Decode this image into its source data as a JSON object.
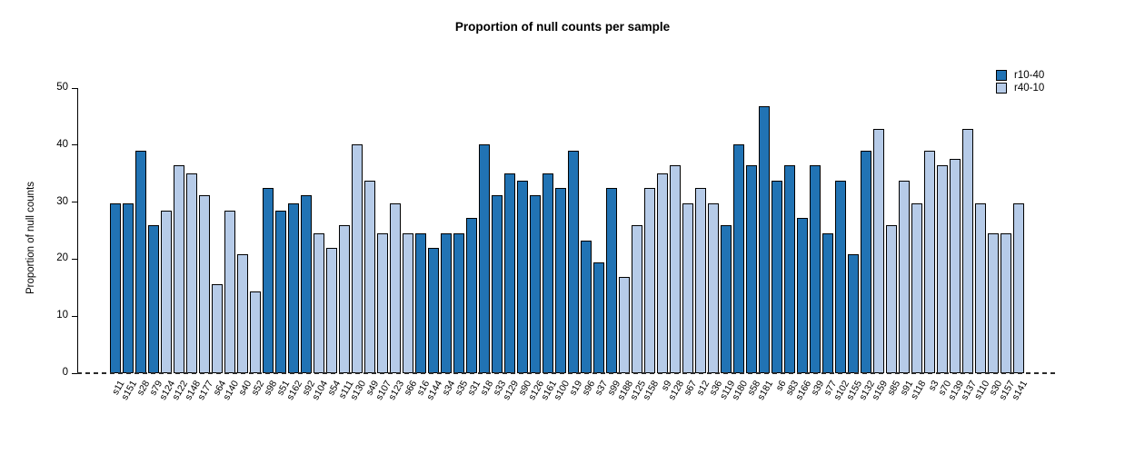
{
  "title": "Proportion of null counts per sample",
  "chart_data": {
    "type": "bar",
    "title": "Proportion of null counts per sample",
    "xlabel": "",
    "ylabel": "Proportion of null counts",
    "ylim": [
      0,
      50
    ],
    "yticks": [
      0,
      10,
      20,
      30,
      40,
      50
    ],
    "grid": false,
    "legend_position": "topright",
    "series": [
      {
        "name": "r10-40",
        "color": "#2173B4"
      },
      {
        "name": "r40-10",
        "color": "#B6CBE8"
      }
    ],
    "zero_line_style": "dashed",
    "samples": [
      {
        "label": "s11",
        "value": 29.8,
        "series": "r10-40"
      },
      {
        "label": "s151",
        "value": 29.8,
        "series": "r10-40"
      },
      {
        "label": "s28",
        "value": 39.0,
        "series": "r10-40"
      },
      {
        "label": "s79",
        "value": 26.0,
        "series": "r10-40"
      },
      {
        "label": "s124",
        "value": 28.5,
        "series": "r40-10"
      },
      {
        "label": "s122",
        "value": 36.4,
        "series": "r40-10"
      },
      {
        "label": "s148",
        "value": 35.0,
        "series": "r40-10"
      },
      {
        "label": "s177",
        "value": 31.2,
        "series": "r40-10"
      },
      {
        "label": "s64",
        "value": 15.6,
        "series": "r40-10"
      },
      {
        "label": "s140",
        "value": 28.5,
        "series": "r40-10"
      },
      {
        "label": "s40",
        "value": 20.8,
        "series": "r40-10"
      },
      {
        "label": "s52",
        "value": 14.3,
        "series": "r40-10"
      },
      {
        "label": "s98",
        "value": 32.5,
        "series": "r10-40"
      },
      {
        "label": "s51",
        "value": 28.5,
        "series": "r10-40"
      },
      {
        "label": "s162",
        "value": 29.8,
        "series": "r10-40"
      },
      {
        "label": "s92",
        "value": 31.2,
        "series": "r10-40"
      },
      {
        "label": "s104",
        "value": 24.5,
        "series": "r40-10"
      },
      {
        "label": "s54",
        "value": 22.0,
        "series": "r40-10"
      },
      {
        "label": "s111",
        "value": 26.0,
        "series": "r40-10"
      },
      {
        "label": "s130",
        "value": 40.2,
        "series": "r40-10"
      },
      {
        "label": "s49",
        "value": 33.8,
        "series": "r40-10"
      },
      {
        "label": "s107",
        "value": 24.5,
        "series": "r40-10"
      },
      {
        "label": "s123",
        "value": 29.8,
        "series": "r40-10"
      },
      {
        "label": "s66",
        "value": 24.5,
        "series": "r40-10"
      },
      {
        "label": "s16",
        "value": 24.5,
        "series": "r10-40"
      },
      {
        "label": "s144",
        "value": 22.0,
        "series": "r10-40"
      },
      {
        "label": "s34",
        "value": 24.5,
        "series": "r10-40"
      },
      {
        "label": "s35",
        "value": 24.5,
        "series": "r10-40"
      },
      {
        "label": "s31",
        "value": 27.3,
        "series": "r10-40"
      },
      {
        "label": "s18",
        "value": 40.2,
        "series": "r10-40"
      },
      {
        "label": "s33",
        "value": 31.2,
        "series": "r10-40"
      },
      {
        "label": "s129",
        "value": 35.0,
        "series": "r10-40"
      },
      {
        "label": "s90",
        "value": 33.8,
        "series": "r10-40"
      },
      {
        "label": "s126",
        "value": 31.2,
        "series": "r10-40"
      },
      {
        "label": "s161",
        "value": 35.0,
        "series": "r10-40"
      },
      {
        "label": "s100",
        "value": 32.5,
        "series": "r10-40"
      },
      {
        "label": "s19",
        "value": 39.0,
        "series": "r10-40"
      },
      {
        "label": "s96",
        "value": 23.3,
        "series": "r10-40"
      },
      {
        "label": "s37",
        "value": 19.5,
        "series": "r10-40"
      },
      {
        "label": "s99",
        "value": 32.5,
        "series": "r10-40"
      },
      {
        "label": "s188",
        "value": 16.8,
        "series": "r40-10"
      },
      {
        "label": "s125",
        "value": 26.0,
        "series": "r40-10"
      },
      {
        "label": "s158",
        "value": 32.5,
        "series": "r40-10"
      },
      {
        "label": "s9",
        "value": 35.0,
        "series": "r40-10"
      },
      {
        "label": "s128",
        "value": 36.4,
        "series": "r40-10"
      },
      {
        "label": "s67",
        "value": 29.8,
        "series": "r40-10"
      },
      {
        "label": "s12",
        "value": 32.5,
        "series": "r40-10"
      },
      {
        "label": "s36",
        "value": 29.8,
        "series": "r40-10"
      },
      {
        "label": "s119",
        "value": 26.0,
        "series": "r10-40"
      },
      {
        "label": "s180",
        "value": 40.2,
        "series": "r10-40"
      },
      {
        "label": "s58",
        "value": 36.4,
        "series": "r10-40"
      },
      {
        "label": "s181",
        "value": 46.8,
        "series": "r10-40"
      },
      {
        "label": "s6",
        "value": 33.8,
        "series": "r10-40"
      },
      {
        "label": "s83",
        "value": 36.4,
        "series": "r10-40"
      },
      {
        "label": "s166",
        "value": 27.3,
        "series": "r10-40"
      },
      {
        "label": "s39",
        "value": 36.4,
        "series": "r10-40"
      },
      {
        "label": "s77",
        "value": 24.5,
        "series": "r10-40"
      },
      {
        "label": "s102",
        "value": 33.8,
        "series": "r10-40"
      },
      {
        "label": "s155",
        "value": 20.8,
        "series": "r10-40"
      },
      {
        "label": "s132",
        "value": 39.0,
        "series": "r10-40"
      },
      {
        "label": "s159",
        "value": 42.8,
        "series": "r40-10"
      },
      {
        "label": "s85",
        "value": 26.0,
        "series": "r40-10"
      },
      {
        "label": "s91",
        "value": 33.8,
        "series": "r40-10"
      },
      {
        "label": "s118",
        "value": 29.8,
        "series": "r40-10"
      },
      {
        "label": "s3",
        "value": 39.0,
        "series": "r40-10"
      },
      {
        "label": "s70",
        "value": 36.4,
        "series": "r40-10"
      },
      {
        "label": "s139",
        "value": 37.6,
        "series": "r40-10"
      },
      {
        "label": "s137",
        "value": 42.8,
        "series": "r40-10"
      },
      {
        "label": "s110",
        "value": 29.8,
        "series": "r40-10"
      },
      {
        "label": "s30",
        "value": 24.5,
        "series": "r40-10"
      },
      {
        "label": "s157",
        "value": 24.5,
        "series": "r40-10"
      },
      {
        "label": "s141",
        "value": 29.8,
        "series": "r40-10"
      }
    ]
  },
  "legend": {
    "items": [
      {
        "label": "r10-40",
        "color": "#2173B4"
      },
      {
        "label": "r40-10",
        "color": "#B6CBE8"
      }
    ]
  }
}
